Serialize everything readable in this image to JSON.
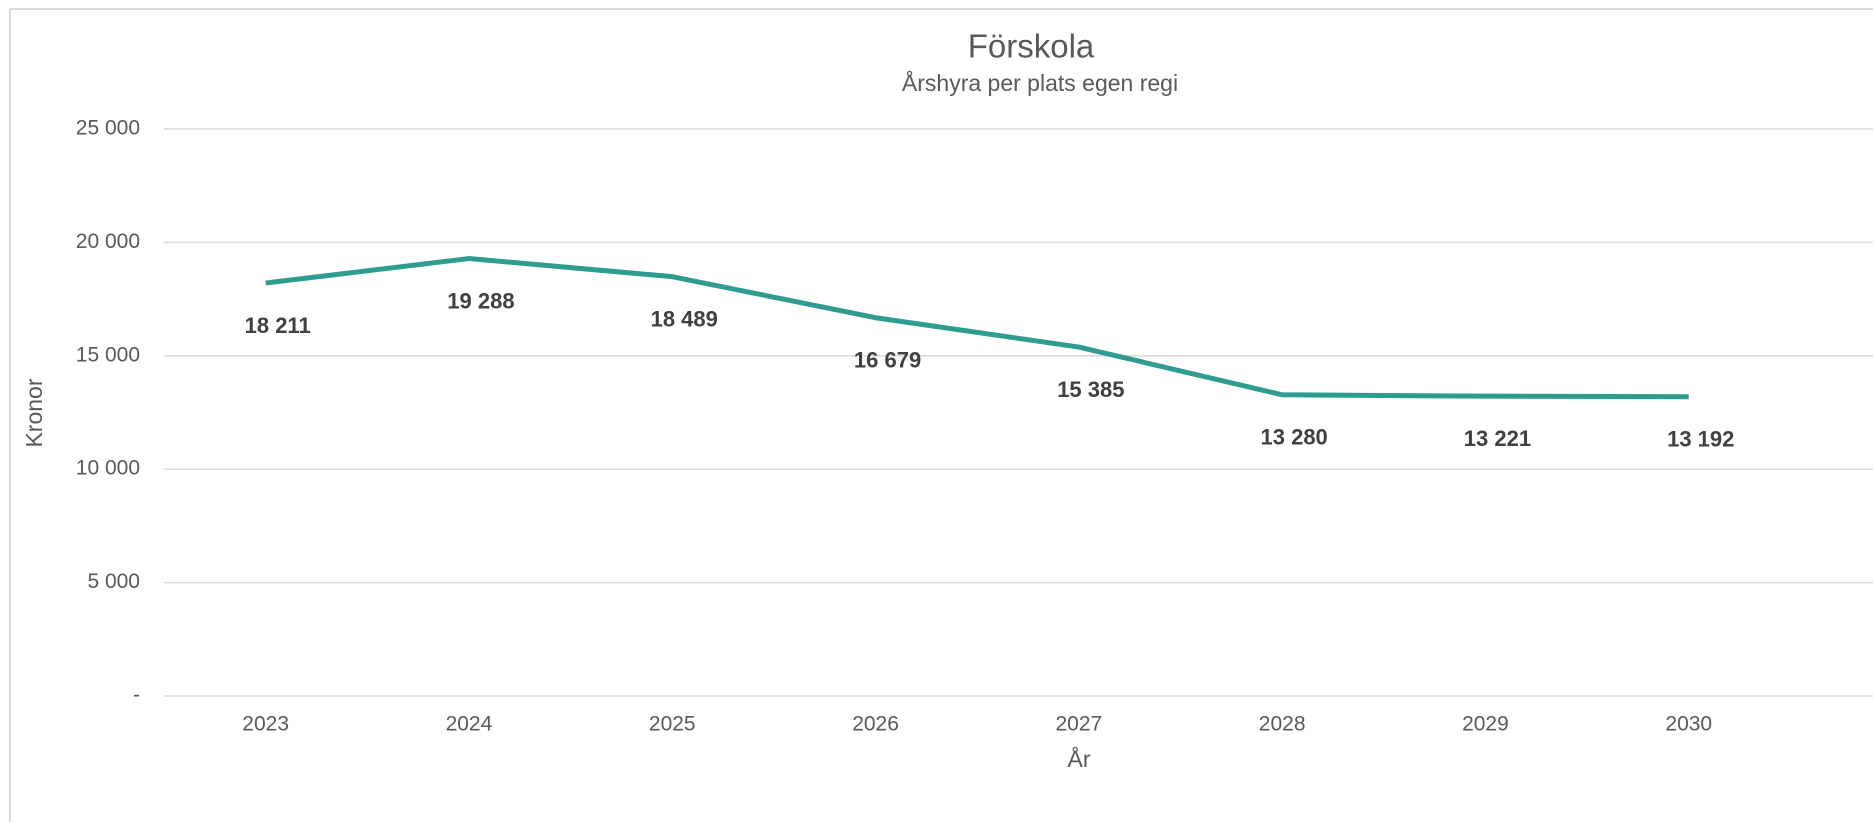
{
  "chart_data": {
    "type": "line",
    "title": "Förskola",
    "subtitle": "Årshyra per plats  egen regi",
    "x_label": "År",
    "y_label": "Kronor",
    "categories": [
      "2023",
      "2024",
      "2025",
      "2026",
      "2027",
      "2028",
      "2029",
      "2030"
    ],
    "series": [
      {
        "name": "Årshyra per plats egen regi",
        "color": "#2e9c8e",
        "values": [
          18211,
          19288,
          18489,
          16679,
          15385,
          13280,
          13221,
          13192
        ],
        "value_labels": [
          "18 211",
          "19 288",
          "18 489",
          "16 679",
          "15 385",
          "13 280",
          "13 221",
          "13 192"
        ]
      }
    ],
    "ylim": [
      0,
      25000
    ],
    "yticks": [
      {
        "value": 0,
        "label": "-"
      },
      {
        "value": 5000,
        "label": "5 000"
      },
      {
        "value": 10000,
        "label": "10 000"
      },
      {
        "value": 15000,
        "label": "15 000"
      },
      {
        "value": 20000,
        "label": "20 000"
      },
      {
        "value": 25000,
        "label": "25 000"
      }
    ],
    "grid": true
  }
}
